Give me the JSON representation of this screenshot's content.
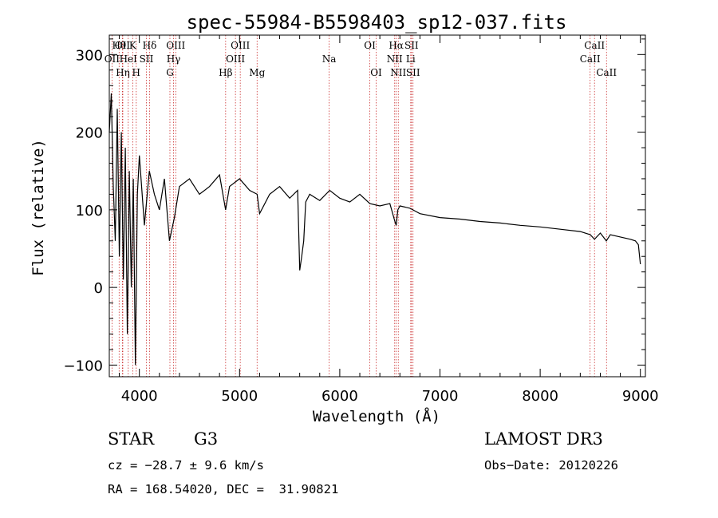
{
  "chart_data": {
    "type": "line",
    "title": "spec-55984-B5598403_sp12-037.fits",
    "xlabel": "Wavelength (Å)",
    "ylabel": "Flux (relative)",
    "xlim": [
      3700,
      9050
    ],
    "ylim": [
      -115,
      325
    ],
    "xticks": [
      4000,
      5000,
      6000,
      7000,
      8000,
      9000
    ],
    "yticks": [
      -100,
      0,
      100,
      200,
      300
    ],
    "series": [
      {
        "name": "spectrum",
        "x": [
          3700,
          3720,
          3740,
          3760,
          3780,
          3800,
          3820,
          3840,
          3860,
          3880,
          3900,
          3920,
          3940,
          3960,
          3980,
          4000,
          4050,
          4100,
          4150,
          4200,
          4250,
          4300,
          4350,
          4400,
          4500,
          4600,
          4700,
          4800,
          4861,
          4900,
          5000,
          5100,
          5175,
          5200,
          5300,
          5400,
          5500,
          5580,
          5600,
          5620,
          5640,
          5660,
          5700,
          5800,
          5900,
          6000,
          6100,
          6200,
          6300,
          6400,
          6500,
          6550,
          6563,
          6580,
          6600,
          6700,
          6800,
          7000,
          7200,
          7400,
          7600,
          7800,
          8000,
          8200,
          8400,
          8500,
          8542,
          8600,
          8660,
          8700,
          8800,
          8900,
          8950,
          8980,
          9000
        ],
        "y": [
          200,
          250,
          130,
          60,
          230,
          40,
          200,
          10,
          180,
          -60,
          150,
          0,
          140,
          -100,
          120,
          170,
          80,
          150,
          120,
          100,
          140,
          60,
          90,
          130,
          140,
          120,
          130,
          145,
          100,
          130,
          140,
          125,
          120,
          95,
          120,
          130,
          115,
          125,
          22,
          40,
          60,
          110,
          120,
          112,
          125,
          115,
          110,
          120,
          108,
          105,
          108,
          85,
          80,
          100,
          105,
          102,
          95,
          90,
          88,
          85,
          83,
          80,
          78,
          75,
          72,
          68,
          62,
          70,
          60,
          68,
          65,
          62,
          60,
          55,
          30
        ]
      }
    ],
    "line_markers": [
      {
        "label": "OII",
        "x": 3727,
        "row": 2
      },
      {
        "label": "Hθ",
        "x": 3798,
        "row": 1
      },
      {
        "label": "OII",
        "x": 3830,
        "row": 1
      },
      {
        "label": "Hη",
        "x": 3835,
        "row": 3
      },
      {
        "label": "HeI",
        "x": 3889,
        "row": 2
      },
      {
        "label": "K",
        "x": 3934,
        "row": 1
      },
      {
        "label": "H",
        "x": 3969,
        "row": 3
      },
      {
        "label": "SII",
        "x": 4070,
        "row": 2
      },
      {
        "label": "Hδ",
        "x": 4102,
        "row": 1
      },
      {
        "label": "G",
        "x": 4305,
        "row": 3
      },
      {
        "label": "OIII",
        "x": 4363,
        "row": 1
      },
      {
        "label": "Hγ",
        "x": 4341,
        "row": 2
      },
      {
        "label": "Hβ",
        "x": 4861,
        "row": 3
      },
      {
        "label": "OIII",
        "x": 4959,
        "row": 2
      },
      {
        "label": "OIII",
        "x": 5007,
        "row": 1
      },
      {
        "label": "Mg",
        "x": 5175,
        "row": 3
      },
      {
        "label": "Na",
        "x": 5894,
        "row": 2
      },
      {
        "label": "OI",
        "x": 6300,
        "row": 1
      },
      {
        "label": "OI",
        "x": 6363,
        "row": 3
      },
      {
        "label": "NII",
        "x": 6548,
        "row": 2
      },
      {
        "label": "Hα",
        "x": 6563,
        "row": 1
      },
      {
        "label": "NII",
        "x": 6584,
        "row": 3
      },
      {
        "label": "Li",
        "x": 6708,
        "row": 2
      },
      {
        "label": "SII",
        "x": 6716,
        "row": 1
      },
      {
        "label": "SII",
        "x": 6731,
        "row": 3
      },
      {
        "label": "CaII",
        "x": 8498,
        "row": 2
      },
      {
        "label": "CaII",
        "x": 8542,
        "row": 1
      },
      {
        "label": "CaII",
        "x": 8662,
        "row": 3
      }
    ],
    "marker_color": "#cc3333"
  },
  "info": {
    "class": "STAR",
    "subclass": "G3",
    "survey": "LAMOST DR3",
    "cz": "cz = −28.7 ± 9.6 km/s",
    "obs_date": "Obs−Date: 20120226",
    "coords": "RA = 168.54020, DEC =  31.90821"
  }
}
